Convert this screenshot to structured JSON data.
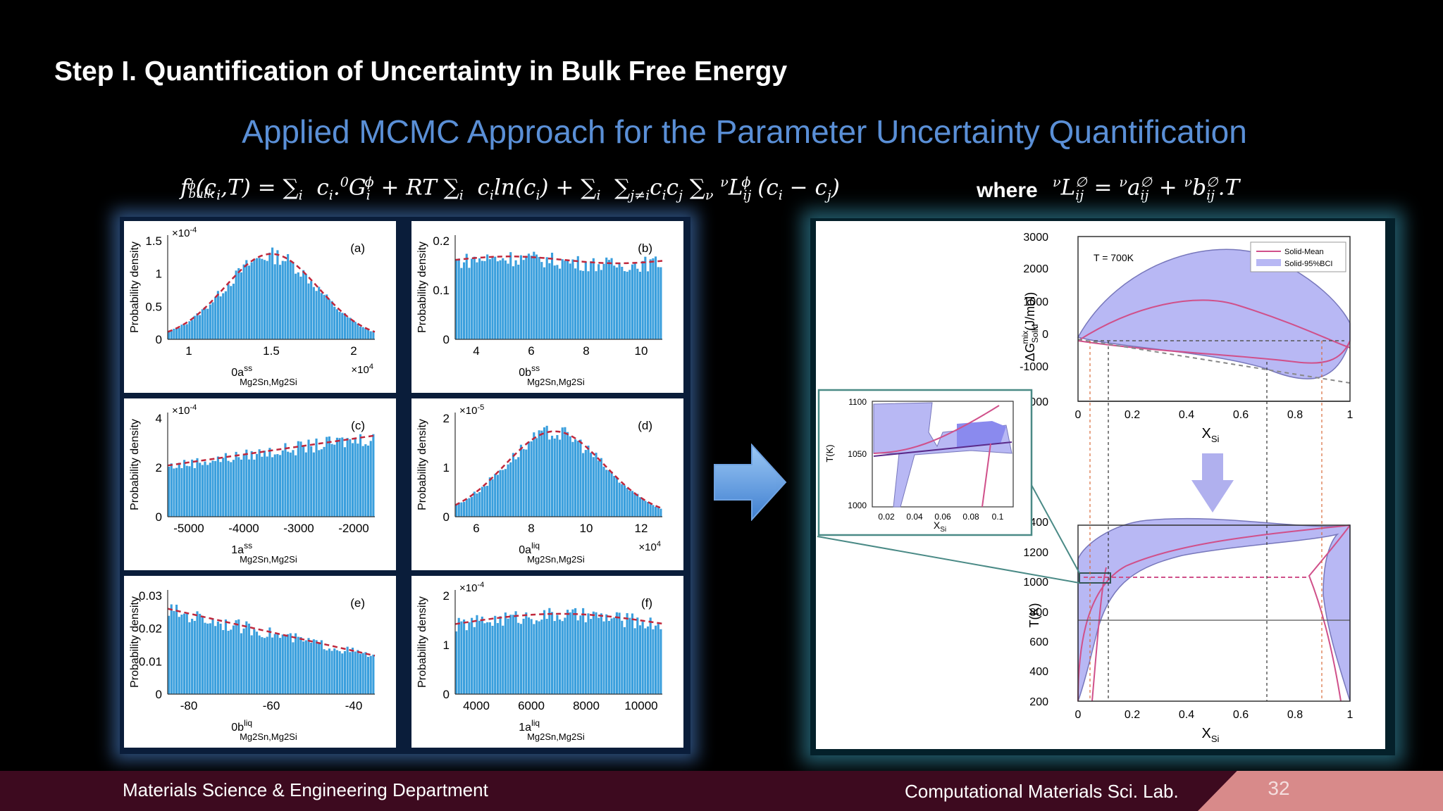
{
  "slide": {
    "step_title": "Step I. Quantification of Uncertainty in Bulk Free Energy",
    "subtitle": "Applied MCMC Approach for the Parameter Uncertainty Quantification",
    "formula_main": "f",
    "formula_where": "where",
    "page_number": "32"
  },
  "footer": {
    "left": "Materials Science & Engineering Department",
    "right": "Computational Materials Sci. Lab."
  },
  "histograms": [
    {
      "label": "(a)",
      "ylabel": "Probability density",
      "yticks": [
        "0",
        "0.5",
        "1",
        "1.5"
      ],
      "yexp": "×10",
      "yexp_pow": "-4",
      "xticks": [
        "1",
        "1.5",
        "2"
      ],
      "xexp": "×10",
      "xexp_pow": "4",
      "param": "0a",
      "param_sup": "ss",
      "param_sub": "Mg2Sn,Mg2Si"
    },
    {
      "label": "(b)",
      "ylabel": "Probability density",
      "yticks": [
        "0",
        "0.1",
        "0.2"
      ],
      "yexp": "",
      "yexp_pow": "",
      "xticks": [
        "4",
        "6",
        "8",
        "10"
      ],
      "xexp": "",
      "xexp_pow": "",
      "param": "0b",
      "param_sup": "ss",
      "param_sub": "Mg2Sn,Mg2Si"
    },
    {
      "label": "(c)",
      "ylabel": "Probability density",
      "yticks": [
        "0",
        "2",
        "4"
      ],
      "yexp": "×10",
      "yexp_pow": "-4",
      "xticks": [
        "-5000",
        "-4000",
        "-3000",
        "-2000"
      ],
      "xexp": "",
      "xexp_pow": "",
      "param": "1a",
      "param_sup": "ss",
      "param_sub": "Mg2Sn,Mg2Si"
    },
    {
      "label": "(d)",
      "ylabel": "Probability density",
      "yticks": [
        "0",
        "1",
        "2"
      ],
      "yexp": "×10",
      "yexp_pow": "-5",
      "xticks": [
        "6",
        "8",
        "10",
        "12"
      ],
      "xexp": "×10",
      "xexp_pow": "4",
      "param": "0a",
      "param_sup": "liq",
      "param_sub": "Mg2Sn,Mg2Si"
    },
    {
      "label": "(e)",
      "ylabel": "Probability density",
      "yticks": [
        "0",
        "0.01",
        "0.02",
        "0.03"
      ],
      "yexp": "",
      "yexp_pow": "",
      "xticks": [
        "-80",
        "-60",
        "-40"
      ],
      "xexp": "",
      "xexp_pow": "",
      "param": "0b",
      "param_sup": "liq",
      "param_sub": "Mg2Sn,Mg2Si"
    },
    {
      "label": "(f)",
      "ylabel": "Probability density",
      "yticks": [
        "0",
        "1",
        "2"
      ],
      "yexp": "×10",
      "yexp_pow": "-4",
      "xticks": [
        "4000",
        "6000",
        "8000",
        "10000"
      ],
      "xexp": "",
      "xexp_pow": "",
      "param": "1a",
      "param_sup": "liq",
      "param_sub": "Mg2Sn,Mg2Si"
    }
  ],
  "energy_plot": {
    "annotation": "T = 700K",
    "ylabel": "ΔG",
    "ylabel_sup": "mix",
    "ylabel_sub": "Solid",
    "ylabel_unit": "(J/mol)",
    "yticks": [
      "3000",
      "2000",
      "1000",
      "0",
      "-1000",
      "-2000"
    ],
    "xticks": [
      "0",
      "0.2",
      "0.4",
      "0.6",
      "0.8",
      "1"
    ],
    "xlabel": "X",
    "xlabel_sub": "Si",
    "legend": [
      "Solid-Mean",
      "Solid-95%BCI"
    ]
  },
  "phase_plot": {
    "ylabel": "T(K)",
    "yticks": [
      "1400",
      "1200",
      "1000",
      "800",
      "600",
      "400",
      "200"
    ],
    "xticks": [
      "0",
      "0.2",
      "0.4",
      "0.6",
      "0.8",
      "1"
    ],
    "xlabel": "X",
    "xlabel_sub": "Si"
  },
  "inset": {
    "ylabel": "T(K)",
    "yticks": [
      "1100",
      "1050",
      "1000"
    ],
    "xticks": [
      "0.02",
      "0.04",
      "0.06",
      "0.08",
      "0.1"
    ],
    "xlabel": "X",
    "xlabel_sub": "Si"
  },
  "colors": {
    "bar": "#3a9fdd",
    "fit": "#c0283c",
    "band": "#b8b8f4",
    "mean": "#d0508a",
    "title_blue": "#5a8fd6",
    "footer": "#3d0a1f",
    "page_tab": "#d88a8a"
  }
}
